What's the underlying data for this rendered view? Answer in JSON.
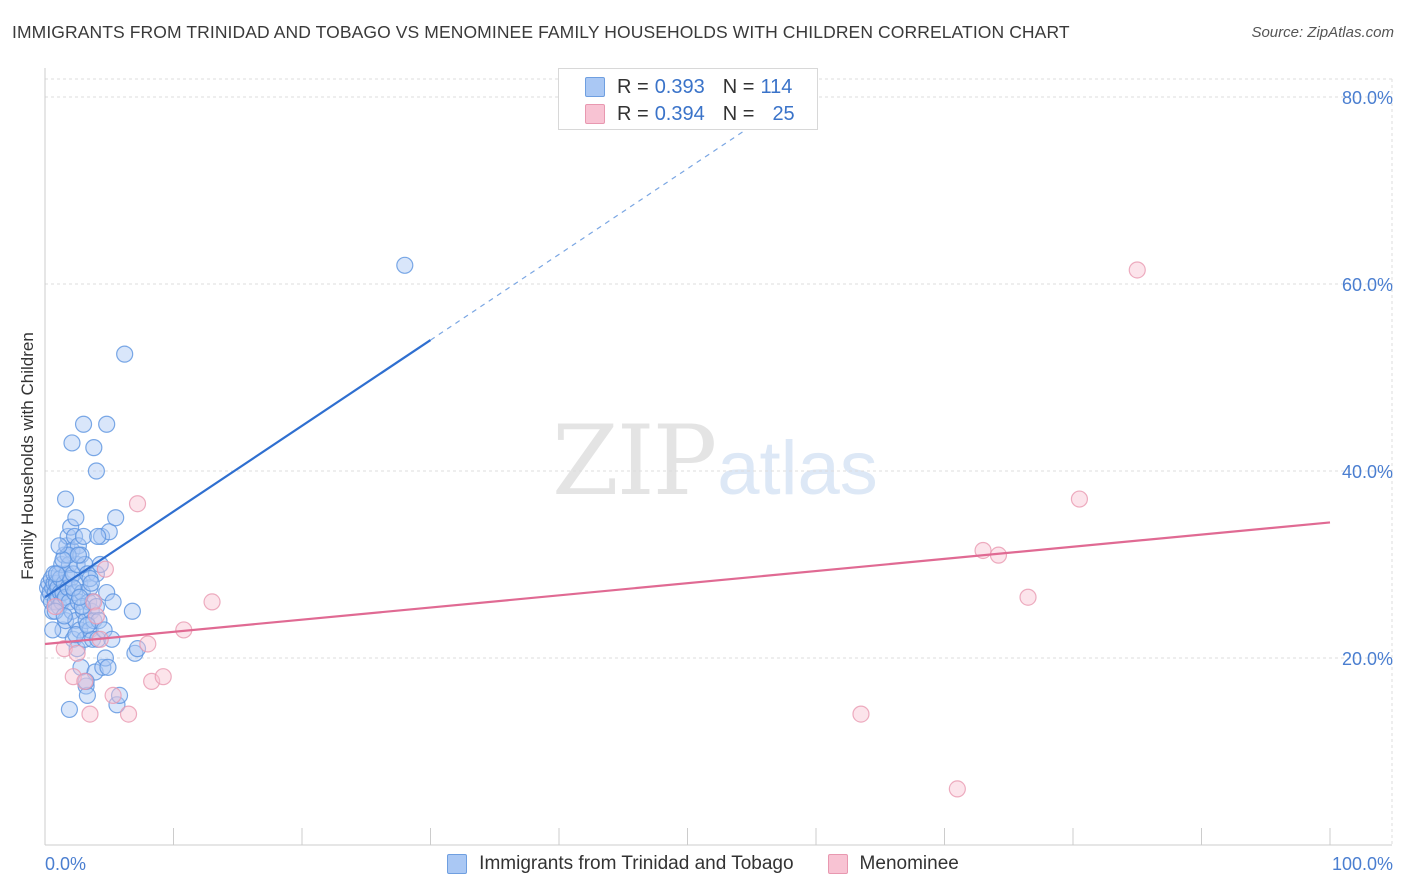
{
  "header": {
    "title": "IMMIGRANTS FROM TRINIDAD AND TOBAGO VS MENOMINEE FAMILY HOUSEHOLDS WITH CHILDREN CORRELATION CHART",
    "source": "Source: ZipAtlas.com"
  },
  "watermark": {
    "zip": "ZIP",
    "atlas": "atlas"
  },
  "legend": {
    "rows": [
      {
        "r_label": "R =",
        "r_value": "0.393",
        "n_label": "N =",
        "n_value": "114",
        "color": "#aac8f4",
        "border": "#6f9fe0"
      },
      {
        "r_label": "R =",
        "r_value": "0.394",
        "n_label": "N =",
        "n_value": "25",
        "color": "#f8c3d3",
        "border": "#e898b0"
      }
    ]
  },
  "bottom_legend": {
    "items": [
      {
        "label": "Immigrants from Trinidad and Tobago",
        "color": "#aac8f4",
        "border": "#6f9fe0"
      },
      {
        "label": "Menominee",
        "color": "#f8c3d3",
        "border": "#e898b0"
      }
    ]
  },
  "chart_data": {
    "type": "scatter",
    "title": "IMMIGRANTS FROM TRINIDAD AND TOBAGO VS MENOMINEE FAMILY HOUSEHOLDS WITH CHILDREN CORRELATION CHART",
    "xlabel": "",
    "ylabel": "Family Households with Children",
    "xlim": [
      0,
      100
    ],
    "ylim": [
      0,
      82
    ],
    "x_ticks": [
      {
        "value": 0,
        "label": "0.0%"
      },
      {
        "value": 100,
        "label": "100.0%"
      }
    ],
    "y_ticks": [
      {
        "value": 20,
        "label": "20.0%"
      },
      {
        "value": 40,
        "label": "40.0%"
      },
      {
        "value": 60,
        "label": "60.0%"
      },
      {
        "value": 80,
        "label": "80.0%"
      }
    ],
    "grid": true,
    "legend_position": "top-center",
    "series": [
      {
        "name": "Immigrants from Trinidad and Tobago",
        "color": "#5b93e0",
        "fill": "#aac8f4",
        "trend": {
          "x0": 0,
          "y0": 26.5,
          "x1": 30,
          "y1": 54,
          "dashed_to_x": 55
        },
        "points": [
          [
            0.2,
            27.5
          ],
          [
            0.3,
            28
          ],
          [
            0.3,
            26.5
          ],
          [
            0.4,
            27
          ],
          [
            0.5,
            28.5
          ],
          [
            0.5,
            26
          ],
          [
            0.6,
            27.5
          ],
          [
            0.6,
            25
          ],
          [
            0.7,
            28
          ],
          [
            0.7,
            29
          ],
          [
            0.8,
            27
          ],
          [
            0.8,
            26
          ],
          [
            0.9,
            28
          ],
          [
            1,
            27.5
          ],
          [
            1,
            26.5
          ],
          [
            1.1,
            29
          ],
          [
            1.1,
            25.5
          ],
          [
            1.2,
            27
          ],
          [
            1.2,
            28.5
          ],
          [
            1.3,
            26
          ],
          [
            1.3,
            30
          ],
          [
            1.4,
            27
          ],
          [
            1.4,
            23
          ],
          [
            1.5,
            28
          ],
          [
            1.5,
            31
          ],
          [
            1.6,
            26.5
          ],
          [
            1.6,
            24
          ],
          [
            1.7,
            29
          ],
          [
            1.7,
            32
          ],
          [
            1.8,
            27.5
          ],
          [
            1.8,
            33
          ],
          [
            1.9,
            26
          ],
          [
            1.9,
            30
          ],
          [
            2,
            28.5
          ],
          [
            2,
            34
          ],
          [
            2.1,
            25
          ],
          [
            2.1,
            31.5
          ],
          [
            2.2,
            29
          ],
          [
            2.2,
            22
          ],
          [
            2.3,
            27
          ],
          [
            2.3,
            33
          ],
          [
            2.4,
            24
          ],
          [
            2.4,
            35
          ],
          [
            2.5,
            30
          ],
          [
            2.5,
            21
          ],
          [
            2.6,
            26
          ],
          [
            2.6,
            32
          ],
          [
            2.7,
            28
          ],
          [
            2.7,
            23
          ],
          [
            2.8,
            31
          ],
          [
            2.8,
            19
          ],
          [
            2.9,
            27
          ],
          [
            3,
            33
          ],
          [
            3,
            25
          ],
          [
            3.1,
            22
          ],
          [
            3.1,
            30
          ],
          [
            3.2,
            24
          ],
          [
            3.2,
            17
          ],
          [
            3.3,
            29
          ],
          [
            3.3,
            16
          ],
          [
            3.4,
            26
          ],
          [
            3.5,
            27.5
          ],
          [
            3.5,
            23
          ],
          [
            3.6,
            25
          ],
          [
            3.7,
            22
          ],
          [
            3.7,
            26
          ],
          [
            3.8,
            24
          ],
          [
            3.9,
            18.5
          ],
          [
            4,
            29
          ],
          [
            4,
            25.5
          ],
          [
            4.1,
            22
          ],
          [
            4.2,
            24
          ],
          [
            4.3,
            30
          ],
          [
            4.4,
            33
          ],
          [
            4.5,
            19
          ],
          [
            4.6,
            23
          ],
          [
            4.7,
            20
          ],
          [
            4.8,
            27
          ],
          [
            4.9,
            19
          ],
          [
            5,
            33.5
          ],
          [
            5.2,
            22
          ],
          [
            5.3,
            26
          ],
          [
            5.5,
            35
          ],
          [
            5.6,
            15
          ],
          [
            5.8,
            16
          ],
          [
            6.2,
            52.5
          ],
          [
            6.8,
            25
          ],
          [
            7,
            20.5
          ],
          [
            7.2,
            21
          ],
          [
            28,
            62
          ],
          [
            3,
            45
          ],
          [
            3.8,
            42.5
          ],
          [
            4,
            40
          ],
          [
            2.1,
            43
          ],
          [
            1.6,
            37
          ],
          [
            4.8,
            45
          ],
          [
            1.8,
            31
          ],
          [
            3.5,
            28.5
          ],
          [
            1.9,
            14.5
          ],
          [
            3.2,
            17.5
          ],
          [
            0.6,
            23
          ],
          [
            0.9,
            29
          ],
          [
            1.4,
            30.5
          ],
          [
            2.6,
            31
          ],
          [
            2.9,
            25.5
          ],
          [
            3.6,
            28
          ],
          [
            4.1,
            33
          ],
          [
            2.4,
            22.5
          ],
          [
            0.8,
            25
          ],
          [
            1.5,
            24.5
          ],
          [
            2.2,
            27.5
          ],
          [
            3.3,
            23.5
          ],
          [
            1.1,
            32
          ],
          [
            2.7,
            26.5
          ]
        ]
      },
      {
        "name": "Menominee",
        "color": "#e898b0",
        "fill": "#f8c3d3",
        "trend": {
          "x0": 0,
          "y0": 21.5,
          "x1": 100,
          "y1": 34.5
        },
        "points": [
          [
            0.8,
            25.5
          ],
          [
            1.5,
            21
          ],
          [
            2.2,
            18
          ],
          [
            3.1,
            17.5
          ],
          [
            3.5,
            14
          ],
          [
            3.8,
            26
          ],
          [
            4,
            24.5
          ],
          [
            4.3,
            22
          ],
          [
            4.7,
            29.5
          ],
          [
            5.3,
            16
          ],
          [
            6.5,
            14
          ],
          [
            7.2,
            36.5
          ],
          [
            8,
            21.5
          ],
          [
            8.3,
            17.5
          ],
          [
            9.2,
            18
          ],
          [
            10.8,
            23
          ],
          [
            13,
            26
          ],
          [
            63.5,
            14
          ],
          [
            71,
            6
          ],
          [
            73,
            31.5
          ],
          [
            74.2,
            31
          ],
          [
            76.5,
            26.5
          ],
          [
            80.5,
            37
          ],
          [
            85,
            61.5
          ],
          [
            2.5,
            20.5
          ]
        ]
      }
    ]
  }
}
